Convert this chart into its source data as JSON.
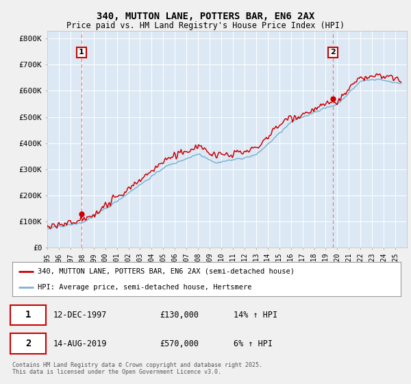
{
  "title1": "340, MUTTON LANE, POTTERS BAR, EN6 2AX",
  "title2": "Price paid vs. HM Land Registry's House Price Index (HPI)",
  "ylabel_ticks": [
    "£0",
    "£100K",
    "£200K",
    "£300K",
    "£400K",
    "£500K",
    "£600K",
    "£700K",
    "£800K"
  ],
  "ytick_values": [
    0,
    100000,
    200000,
    300000,
    400000,
    500000,
    600000,
    700000,
    800000
  ],
  "ylim": [
    0,
    830000
  ],
  "xlim_start": 1995.0,
  "xlim_end": 2026.0,
  "color_red": "#cc0000",
  "color_blue": "#7ab3d4",
  "color_dashed": "#e08080",
  "background_color": "#f0f0f0",
  "plot_bg": "#dce9f5",
  "legend_label1": "340, MUTTON LANE, POTTERS BAR, EN6 2AX (semi-detached house)",
  "legend_label2": "HPI: Average price, semi-detached house, Hertsmere",
  "marker1_date": "12-DEC-1997",
  "marker1_price": "£130,000",
  "marker1_hpi": "14% ↑ HPI",
  "marker1_x": 1997.95,
  "marker1_y": 130000,
  "marker2_date": "14-AUG-2019",
  "marker2_price": "£570,000",
  "marker2_hpi": "6% ↑ HPI",
  "marker2_x": 2019.62,
  "marker2_y": 570000,
  "footer": "Contains HM Land Registry data © Crown copyright and database right 2025.\nThis data is licensed under the Open Government Licence v3.0.",
  "xticks": [
    1995,
    1996,
    1997,
    1998,
    1999,
    2000,
    2001,
    2002,
    2003,
    2004,
    2005,
    2006,
    2007,
    2008,
    2009,
    2010,
    2011,
    2012,
    2013,
    2014,
    2015,
    2016,
    2017,
    2018,
    2019,
    2020,
    2021,
    2022,
    2023,
    2024,
    2025
  ]
}
